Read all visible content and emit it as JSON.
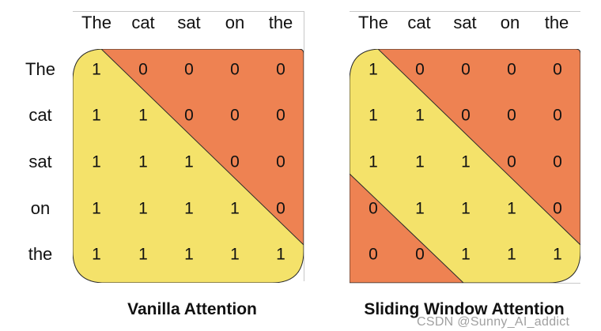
{
  "colors": {
    "yellow": "#f4e26a",
    "orange": "#ee8252",
    "border": "#2b2b2b"
  },
  "tokens": [
    "The",
    "cat",
    "sat",
    "on",
    "the"
  ],
  "panels": [
    {
      "caption": "Vanilla Attention",
      "matrix": [
        [
          1,
          0,
          0,
          0,
          0
        ],
        [
          1,
          1,
          0,
          0,
          0
        ],
        [
          1,
          1,
          1,
          0,
          0
        ],
        [
          1,
          1,
          1,
          1,
          0
        ],
        [
          1,
          1,
          1,
          1,
          1
        ]
      ]
    },
    {
      "caption": "Sliding Window Attention",
      "matrix": [
        [
          1,
          0,
          0,
          0,
          0
        ],
        [
          1,
          1,
          0,
          0,
          0
        ],
        [
          1,
          1,
          1,
          0,
          0
        ],
        [
          0,
          1,
          1,
          1,
          0
        ],
        [
          0,
          0,
          1,
          1,
          1
        ]
      ]
    }
  ],
  "watermark": "CSDN @Sunny_AI_addict"
}
